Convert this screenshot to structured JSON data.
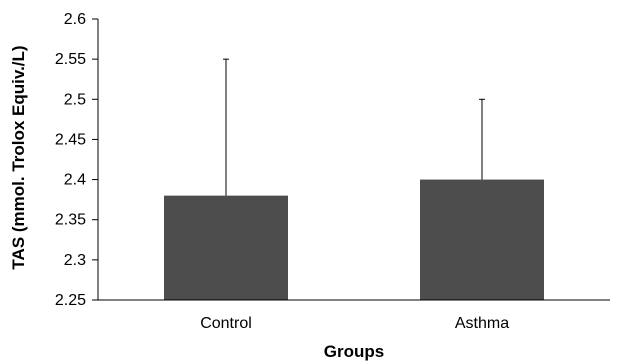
{
  "chart_data": {
    "type": "bar",
    "categories": [
      "Control",
      "Asthma"
    ],
    "values": [
      2.38,
      2.4
    ],
    "error_upper": [
      2.55,
      2.5
    ],
    "xlabel": "Groups",
    "ylabel": "TAS (mmol. Trolox Equiv./L)",
    "ylim": [
      2.25,
      2.6
    ],
    "yticks": [
      2.25,
      2.3,
      2.35,
      2.4,
      2.45,
      2.5,
      2.55,
      2.6
    ],
    "ytick_labels": [
      "2.25",
      "2.3",
      "2.35",
      "2.4",
      "2.45",
      "2.5",
      "2.55",
      "2.6"
    ],
    "grid": false,
    "bar_color": "#4d4d4d"
  }
}
